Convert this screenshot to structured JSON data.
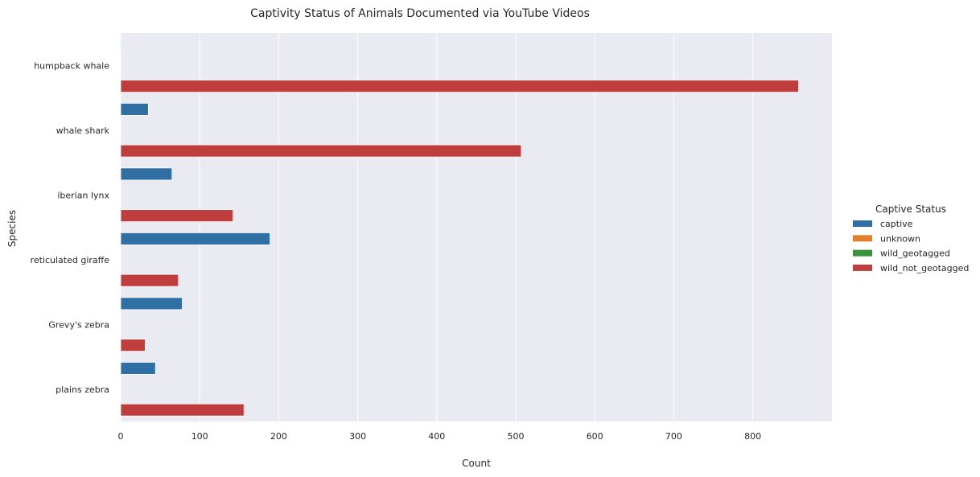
{
  "chart_data": {
    "type": "bar",
    "orientation": "horizontal",
    "title": "Captivity Status of Animals Documented via YouTube Videos",
    "xlabel": "Count",
    "ylabel": "Species",
    "xlim": [
      0,
      900
    ],
    "xticks": [
      0,
      100,
      200,
      300,
      400,
      500,
      600,
      700,
      800
    ],
    "grid": true,
    "categories": [
      "humpback whale",
      "whale shark",
      "iberian lynx",
      "reticulated giraffe",
      "Grevy's zebra",
      "plains zebra"
    ],
    "legend": {
      "title": "Captive Status",
      "placement": "right"
    },
    "series": [
      {
        "name": "captive",
        "color": "#2f6fa3",
        "values": [
          1,
          35,
          65,
          189,
          78,
          44
        ]
      },
      {
        "name": "unknown",
        "color": "#e1812c",
        "values": [
          0,
          0,
          0,
          0,
          0,
          0
        ]
      },
      {
        "name": "wild_geotagged",
        "color": "#3a923a",
        "values": [
          0,
          0,
          0,
          0,
          0,
          0
        ]
      },
      {
        "name": "wild_not_geotagged",
        "color": "#c03d3e",
        "values": [
          858,
          507,
          142,
          73,
          31,
          156
        ]
      }
    ]
  }
}
